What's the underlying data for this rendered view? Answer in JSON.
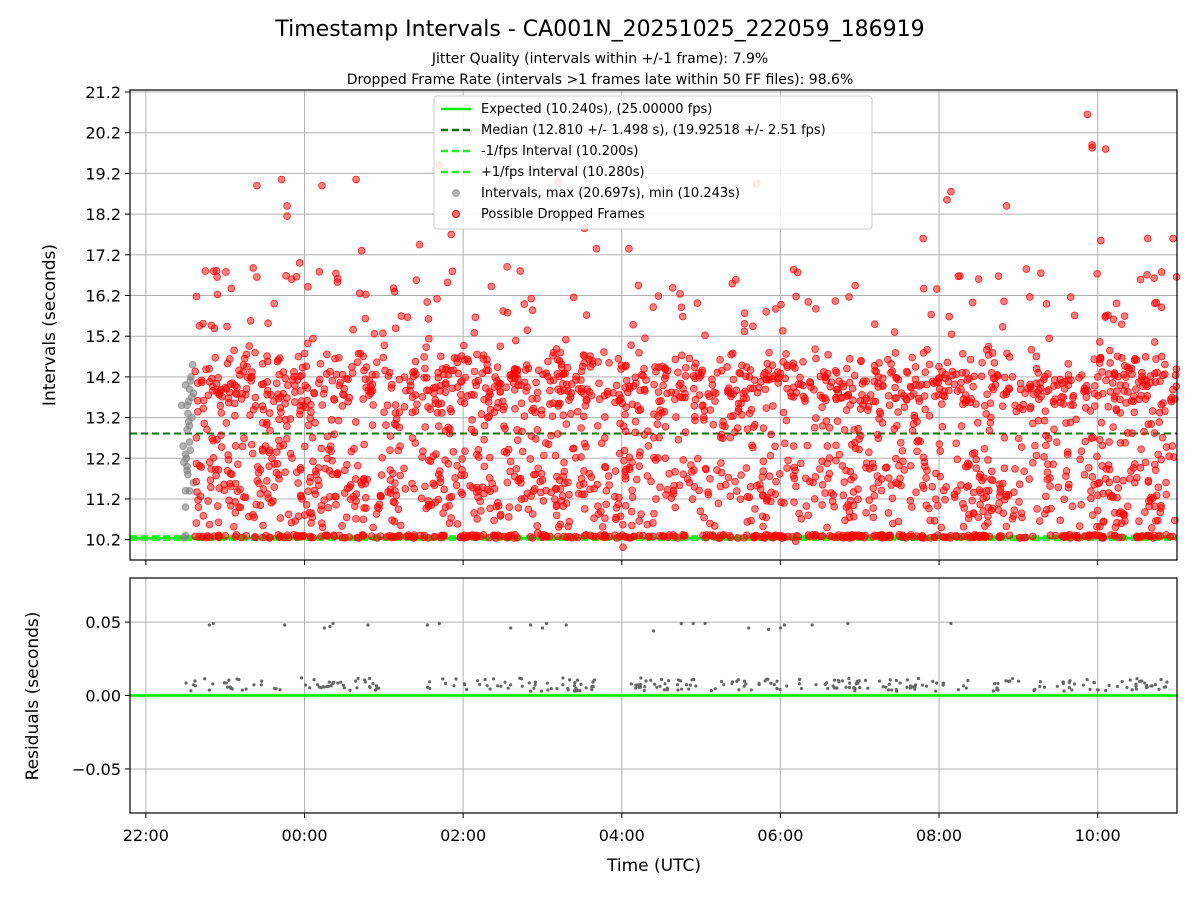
{
  "chart_data": [
    {
      "type": "scatter",
      "title": "Timestamp Intervals - CA001N_20251025_222059_186919",
      "subtitles": [
        "Jitter Quality (intervals within +/-1 frame): 7.9%",
        "Dropped Frame Rate (intervals >1 frames late within 50 FF files): 98.6%"
      ],
      "xlabel": "",
      "ylabel": "Intervals (seconds)",
      "xlim_hours": [
        -2.2,
        11.0
      ],
      "ylim": [
        9.7,
        21.25
      ],
      "y_ticks": [
        "10.2",
        "11.2",
        "12.2",
        "13.2",
        "14.2",
        "15.2",
        "16.2",
        "17.2",
        "18.2",
        "19.2",
        "20.2",
        "21.2"
      ],
      "y_tick_values": [
        10.2,
        11.2,
        12.2,
        13.2,
        14.2,
        15.2,
        16.2,
        17.2,
        18.2,
        19.2,
        20.2,
        21.2
      ],
      "grid": true,
      "legend_position": "top-center",
      "reference_lines": [
        {
          "name": "Expected (10.240s), (25.00000 fps)",
          "value": 10.24,
          "color": "#00ee00",
          "style": "solid"
        },
        {
          "name": "Median (12.810 +/- 1.498 s), (19.92518 +/- 2.51 fps)",
          "value": 12.81,
          "color": "#007700",
          "style": "dashed"
        },
        {
          "name": "-1/fps Interval (10.200s)",
          "value": 10.2,
          "color": "#22ee22",
          "style": "dashed"
        },
        {
          "name": "+1/fps Interval (10.280s)",
          "value": 10.28,
          "color": "#22ee22",
          "style": "dashed"
        }
      ],
      "series": [
        {
          "name": "Intervals, max (20.697s), min (10.243s)",
          "color": "#808080",
          "values": [
            [
              -1.52,
              10.25
            ],
            [
              -1.5,
              10.3
            ],
            [
              -1.48,
              12.0
            ],
            [
              -1.5,
              12.3
            ],
            [
              -1.47,
              11.8
            ],
            [
              -1.52,
              12.1
            ],
            [
              -1.45,
              12.6
            ],
            [
              -1.5,
              11.4
            ],
            [
              -1.45,
              11.4
            ],
            [
              -1.49,
              12.2
            ],
            [
              -1.48,
              13.5
            ],
            [
              -1.45,
              13.9
            ],
            [
              -1.5,
              14.0
            ],
            [
              -1.44,
              14.1
            ],
            [
              -1.46,
              13.6
            ],
            [
              -1.42,
              13.2
            ],
            [
              -1.46,
              13.1
            ],
            [
              -1.4,
              13.8
            ],
            [
              -1.55,
              13.5
            ],
            [
              -1.47,
              13.3
            ],
            [
              -1.43,
              14.2
            ],
            [
              -1.42,
              13.7
            ],
            [
              -1.48,
              12.9
            ],
            [
              -1.44,
              12.4
            ],
            [
              -1.5,
              11.0
            ],
            [
              -1.4,
              11.6
            ],
            [
              -1.53,
              12.5
            ],
            [
              -1.45,
              13.0
            ],
            [
              -1.41,
              14.5
            ],
            [
              -1.48,
              11.9
            ]
          ]
        },
        {
          "name": "Possible Dropped Frames",
          "color": "#ff0000",
          "density_note": "approx. 2000 points spanning -1.4 h to 11.0 h; dense band 10.2-14.7 s, sparse outliers to 20.7 s",
          "sample_values": [
            [
              -0.6,
              18.9
            ],
            [
              -0.22,
              18.4
            ],
            [
              -0.22,
              18.15
            ],
            [
              0.22,
              18.9
            ],
            [
              -0.29,
              19.05
            ],
            [
              0.65,
              19.05
            ],
            [
              -1.25,
              16.8
            ],
            [
              1.7,
              19.4
            ],
            [
              3.2,
              19.0
            ],
            [
              3.53,
              17.85
            ],
            [
              5.7,
              18.95
            ],
            [
              9.87,
              20.65
            ],
            [
              9.93,
              19.9
            ],
            [
              9.93,
              19.83
            ],
            [
              10.1,
              19.8
            ],
            [
              8.15,
              18.75
            ],
            [
              8.85,
              18.4
            ],
            [
              8.1,
              18.55
            ],
            [
              7.8,
              17.6
            ],
            [
              10.63,
              17.6
            ],
            [
              10.04,
              17.55
            ],
            [
              10.95,
              17.6
            ],
            [
              1.85,
              17.7
            ],
            [
              4.09,
              17.35
            ],
            [
              3.68,
              17.35
            ],
            [
              1.45,
              17.45
            ],
            [
              0.72,
              17.3
            ],
            [
              -0.06,
              17.0
            ],
            [
              2.72,
              16.8
            ],
            [
              5.82,
              15.8
            ]
          ]
        }
      ]
    },
    {
      "type": "scatter",
      "title": "",
      "xlabel": "Time (UTC)",
      "ylabel": "Residuals (seconds)",
      "xlim_hours": [
        -2.2,
        11.0
      ],
      "ylim": [
        -0.08,
        0.08
      ],
      "x_ticks": [
        "22:00",
        "00:00",
        "02:00",
        "04:00",
        "06:00",
        "08:00",
        "10:00"
      ],
      "x_tick_hours": [
        -2,
        0,
        2,
        4,
        6,
        8,
        10
      ],
      "y_ticks": [
        "−0.05",
        "0.00",
        "0.05"
      ],
      "y_tick_values": [
        -0.05,
        0.0,
        0.05
      ],
      "grid": true,
      "reference_line": {
        "value": 0.0,
        "color": "#00ee00"
      },
      "series": [
        {
          "name": "",
          "color": "#666666",
          "values": [
            [
              -1.2,
              0.048
            ],
            [
              -1.15,
              0.049
            ],
            [
              -0.25,
              0.048
            ],
            [
              0.25,
              0.046
            ],
            [
              0.32,
              0.047
            ],
            [
              0.36,
              0.049
            ],
            [
              0.8,
              0.048
            ],
            [
              1.55,
              0.048
            ],
            [
              1.7,
              0.049
            ],
            [
              2.6,
              0.046
            ],
            [
              2.85,
              0.048
            ],
            [
              3.0,
              0.046
            ],
            [
              3.05,
              0.049
            ],
            [
              3.3,
              0.048
            ],
            [
              4.4,
              0.044
            ],
            [
              4.75,
              0.049
            ],
            [
              4.9,
              0.049
            ],
            [
              5.05,
              0.049
            ],
            [
              5.6,
              0.046
            ],
            [
              5.85,
              0.045
            ],
            [
              6.0,
              0.046
            ],
            [
              6.05,
              0.048
            ],
            [
              6.4,
              0.048
            ],
            [
              6.85,
              0.049
            ],
            [
              8.15,
              0.049
            ]
          ],
          "cluster_value": 0.008,
          "cluster_note": "approx. 320 points at 0.003-0.012 s spread across the time range"
        }
      ]
    }
  ]
}
